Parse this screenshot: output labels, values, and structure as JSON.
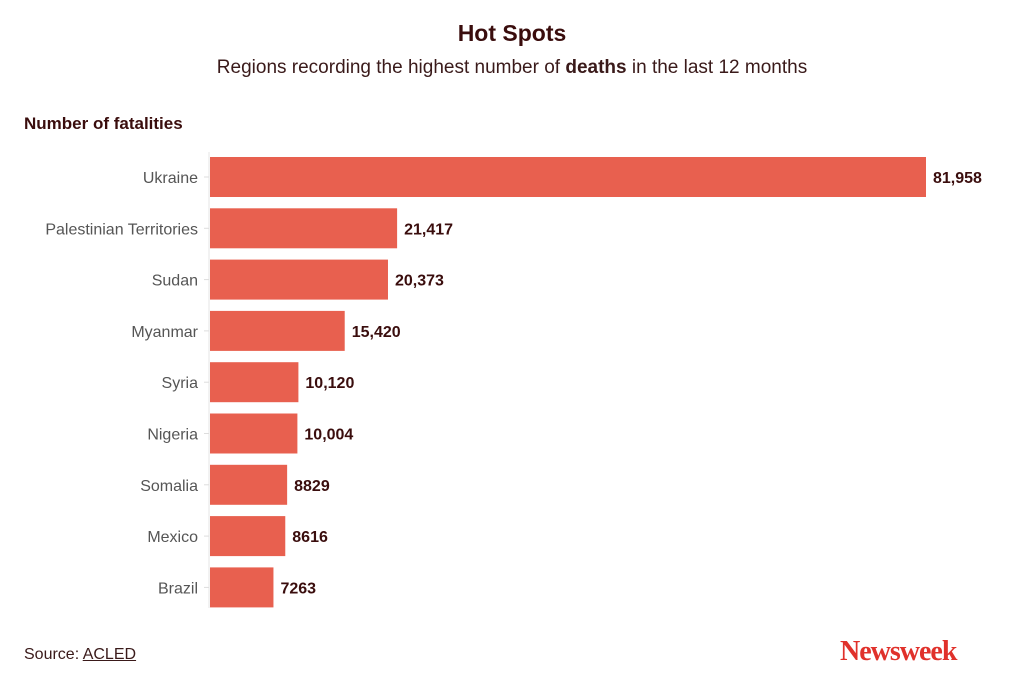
{
  "chart_data": {
    "type": "bar",
    "orientation": "horizontal",
    "title": "Hot Spots",
    "subtitle": {
      "before": "Regions recording the highest number of ",
      "bold": "deaths",
      "after": " in the last 12 months"
    },
    "ylabel": "Number of fatalities",
    "xlabel": "",
    "categories": [
      "Ukraine",
      "Palestinian Territories",
      "Sudan",
      "Myanmar",
      "Syria",
      "Nigeria",
      "Somalia",
      "Mexico",
      "Brazil"
    ],
    "values": [
      81958,
      21417,
      20373,
      15420,
      10120,
      10004,
      8829,
      8616,
      7263
    ],
    "value_labels": [
      "81,958",
      "21,417",
      "20,373",
      "15,420",
      "10,120",
      "10,004",
      "8829",
      "8616",
      "7263"
    ],
    "xlim": [
      0,
      81958
    ],
    "grid": false,
    "bar_color": "#e8604f"
  },
  "footer": {
    "source_prefix": "Source: ",
    "source_link": "ACLED",
    "logo": "Newsweek"
  }
}
